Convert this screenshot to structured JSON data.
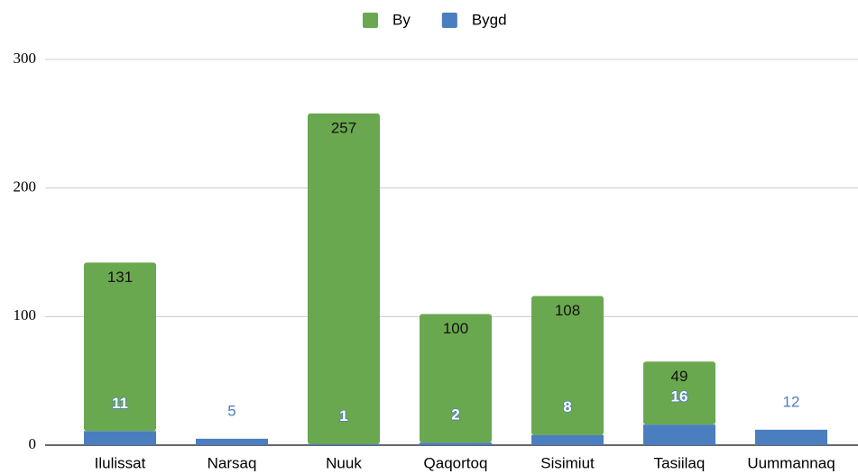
{
  "chart_data": {
    "type": "stacked_bar",
    "categories": [
      "Ilulissat",
      "Narsaq",
      "Nuuk",
      "Qaqortoq",
      "Sisimiut",
      "Tasiilaq",
      "Uummannaq"
    ],
    "series": [
      {
        "name": "Bygd",
        "color": "#4a7ebf",
        "values": [
          11,
          5,
          1,
          2,
          8,
          16,
          12
        ]
      },
      {
        "name": "By",
        "color": "#6aa84f",
        "values": [
          131,
          null,
          257,
          100,
          108,
          49,
          null
        ]
      }
    ],
    "ylim": [
      0,
      300
    ],
    "yticks": [
      0,
      100,
      200,
      300
    ],
    "grid": true,
    "legend": "top"
  }
}
